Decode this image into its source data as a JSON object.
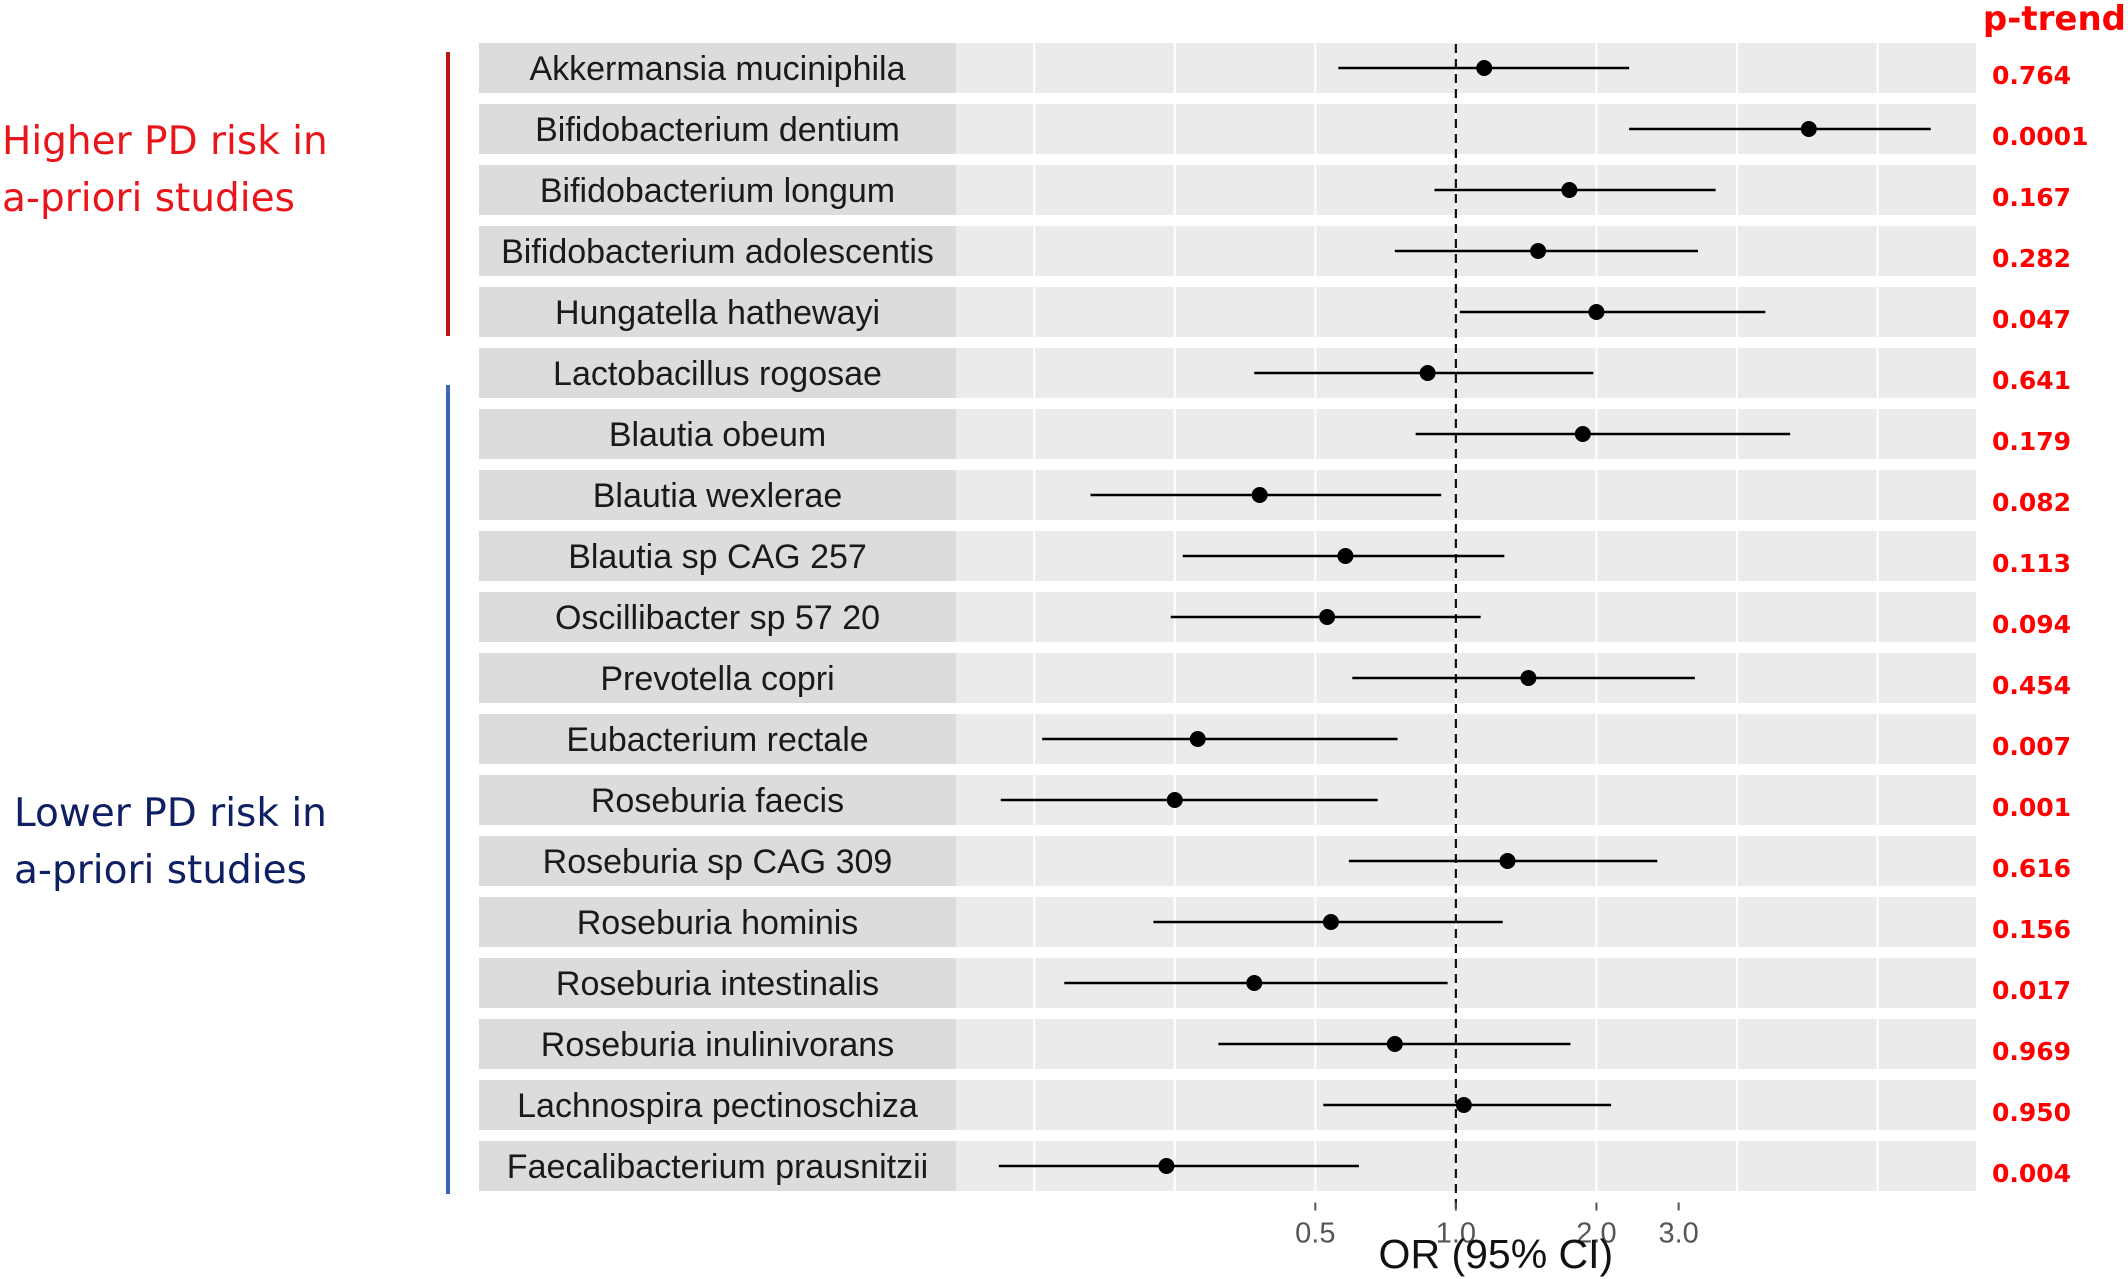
{
  "groups": {
    "higher": {
      "line1": "Higher PD risk in",
      "line2": "a-priori studies",
      "color": "#e8161b",
      "bar_color": "#c01418",
      "range": [
        0,
        4
      ]
    },
    "lower": {
      "line1": "Lower PD risk in",
      "line2": "a-priori studies",
      "color": "#0f1f63",
      "bar_color": "#3a64c0",
      "range": [
        5,
        18
      ]
    }
  },
  "chart_data": {
    "type": "forest",
    "xlabel": "OR (95% CI)",
    "xscale": "log",
    "xlim": [
      0.085,
      13.0
    ],
    "xticks": [
      {
        "value": 0.5,
        "label": "0.5"
      },
      {
        "value": 1.0,
        "label": "1.0"
      },
      {
        "value": 2.0,
        "label": "2.0"
      },
      {
        "value": 3.0,
        "label": "3.0"
      }
    ],
    "reference_line": 1.0,
    "ptrend_header": "p-trend",
    "ptrend_color": "#ff0000",
    "rows": [
      {
        "label": "Akkermansia muciniphila",
        "or": 1.15,
        "lo": 0.56,
        "hi": 2.35,
        "p": "0.764"
      },
      {
        "label": "Bifidobacterium dentium",
        "or": 5.7,
        "lo": 2.35,
        "hi": 10.4,
        "p": "0.0001"
      },
      {
        "label": "Bifidobacterium longum",
        "or": 1.75,
        "lo": 0.9,
        "hi": 3.6,
        "p": "0.167"
      },
      {
        "label": "Bifidobacterium adolescentis",
        "or": 1.5,
        "lo": 0.74,
        "hi": 3.3,
        "p": "0.282"
      },
      {
        "label": "Hungatella hathewayi",
        "or": 2.0,
        "lo": 1.02,
        "hi": 4.6,
        "p": "0.047"
      },
      {
        "label": "Lactobacillus rogosae",
        "or": 0.87,
        "lo": 0.37,
        "hi": 1.97,
        "p": "0.641"
      },
      {
        "label": "Blautia obeum",
        "or": 1.87,
        "lo": 0.82,
        "hi": 5.2,
        "p": "0.179"
      },
      {
        "label": "Blautia wexlerae",
        "or": 0.38,
        "lo": 0.165,
        "hi": 0.93,
        "p": "0.082"
      },
      {
        "label": "Blautia sp CAG 257",
        "or": 0.58,
        "lo": 0.26,
        "hi": 1.27,
        "p": "0.113"
      },
      {
        "label": "Oscillibacter sp 57 20",
        "or": 0.53,
        "lo": 0.245,
        "hi": 1.13,
        "p": "0.094"
      },
      {
        "label": "Prevotella copri",
        "or": 1.43,
        "lo": 0.6,
        "hi": 3.25,
        "p": "0.454"
      },
      {
        "label": "Eubacterium rectale",
        "or": 0.28,
        "lo": 0.13,
        "hi": 0.75,
        "p": "0.007"
      },
      {
        "label": "Roseburia faecis",
        "or": 0.25,
        "lo": 0.106,
        "hi": 0.68,
        "p": "0.001"
      },
      {
        "label": "Roseburia sp CAG 309",
        "or": 1.29,
        "lo": 0.59,
        "hi": 2.7,
        "p": "0.616"
      },
      {
        "label": "Roseburia hominis",
        "or": 0.54,
        "lo": 0.225,
        "hi": 1.26,
        "p": "0.156"
      },
      {
        "label": "Roseburia intestinalis",
        "or": 0.37,
        "lo": 0.145,
        "hi": 0.96,
        "p": "0.017"
      },
      {
        "label": "Roseburia inulinivorans",
        "or": 0.74,
        "lo": 0.31,
        "hi": 1.76,
        "p": "0.969"
      },
      {
        "label": "Lachnospira pectinoschiza",
        "or": 1.04,
        "lo": 0.52,
        "hi": 2.15,
        "p": "0.950"
      },
      {
        "label": "Faecalibacterium prausnitzii",
        "or": 0.24,
        "lo": 0.105,
        "hi": 0.62,
        "p": "0.004"
      }
    ]
  }
}
